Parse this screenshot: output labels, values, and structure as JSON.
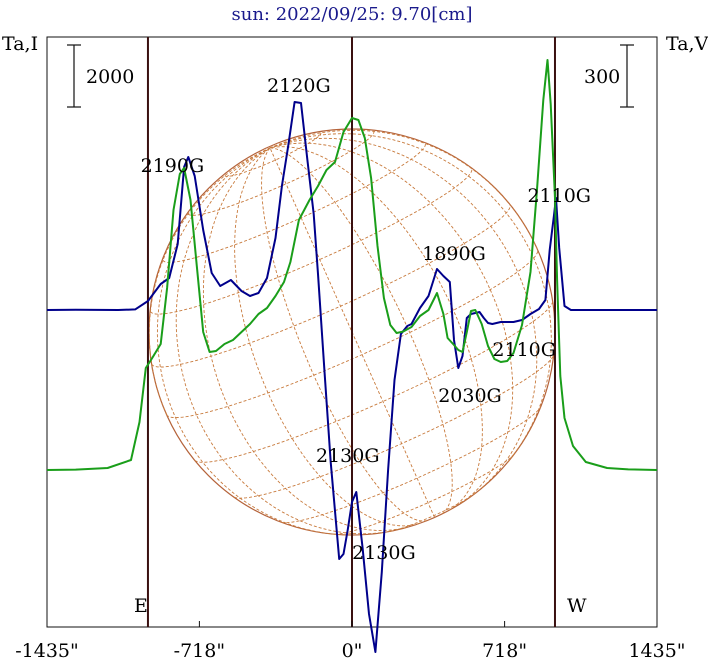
{
  "chart_data": {
    "type": "line",
    "title": "sun: 2022/09/25: 9.70[cm]",
    "ylabel_left": "Ta,I",
    "ylabel_right": "Ta,V",
    "scale_left": "2000",
    "scale_right": "300",
    "x_unit": "arcsec",
    "xlim": [
      -1435,
      1435
    ],
    "x_ticks": [
      -1435,
      -718,
      0,
      718,
      1435
    ],
    "x_tick_labels": [
      "-1435\"",
      "-718\"",
      "0\"",
      "718\"",
      "1435\""
    ],
    "grid": false,
    "markers": [
      {
        "label": "E",
        "x": -960
      },
      {
        "label": "",
        "x": 0
      },
      {
        "label": "W",
        "x": 955
      }
    ],
    "series": [
      {
        "name": "",
        "color": "#00008b",
        "baseline": 0,
        "x": [
          -1435,
          -1300,
          -1100,
          -1020,
          -960,
          -900,
          -860,
          -820,
          -790,
          -770,
          -740,
          -700,
          -660,
          -620,
          -570,
          -520,
          -480,
          -440,
          -400,
          -360,
          -330,
          -300,
          -270,
          -240,
          -210,
          -180,
          -160,
          -130,
          -100,
          -60,
          -40,
          -20,
          0,
          20,
          50,
          80,
          110,
          140,
          170,
          200,
          230,
          260,
          280,
          320,
          360,
          400,
          430,
          460,
          480,
          500,
          520,
          540,
          560,
          580,
          600,
          620,
          640,
          660,
          700,
          760,
          800,
          840,
          880,
          910,
          930,
          950,
          960,
          975,
          1000,
          1030,
          1060,
          1100,
          1200,
          1300,
          1435
        ],
        "y": [
          0,
          1,
          0,
          3,
          45,
          130,
          160,
          330,
          715,
          765,
          670,
          400,
          185,
          120,
          150,
          95,
          70,
          85,
          160,
          360,
          620,
          820,
          1040,
          1035,
          750,
          480,
          180,
          -300,
          -760,
          -1245,
          -1220,
          -1100,
          -960,
          -910,
          -1190,
          -1520,
          -1710,
          -1310,
          -800,
          -350,
          -120,
          -80,
          -70,
          10,
          70,
          205,
          170,
          140,
          -150,
          -290,
          -230,
          -40,
          -20,
          -15,
          -10,
          -40,
          -65,
          -70,
          -60,
          -60,
          -50,
          -20,
          5,
          50,
          300,
          470,
          560,
          310,
          20,
          0,
          0,
          0,
          0,
          0,
          0
        ]
      },
      {
        "name": "",
        "color": "#1a9e1a",
        "baseline": -800,
        "x": [
          -1435,
          -1300,
          -1150,
          -1040,
          -1000,
          -970,
          -940,
          -900,
          -870,
          -840,
          -810,
          -790,
          -760,
          -730,
          -700,
          -670,
          -640,
          -600,
          -560,
          -520,
          -480,
          -440,
          -400,
          -360,
          -320,
          -290,
          -250,
          -200,
          -160,
          -120,
          -80,
          -40,
          0,
          30,
          60,
          90,
          120,
          150,
          180,
          210,
          240,
          280,
          320,
          360,
          400,
          430,
          450,
          480,
          500,
          520,
          540,
          560,
          580,
          610,
          640,
          670,
          700,
          730,
          760,
          800,
          840,
          870,
          900,
          920,
          935,
          955,
          965,
          980,
          1000,
          1040,
          1100,
          1200,
          1300,
          1435
        ],
        "y": [
          -800,
          -798,
          -790,
          -750,
          -560,
          -290,
          -240,
          -170,
          110,
          500,
          680,
          710,
          550,
          220,
          -110,
          -210,
          -205,
          -170,
          -150,
          -110,
          -70,
          -20,
          10,
          70,
          140,
          240,
          450,
          550,
          620,
          700,
          740,
          890,
          960,
          950,
          860,
          660,
          320,
          60,
          -75,
          -115,
          -108,
          -85,
          -30,
          0,
          85,
          -20,
          -140,
          -175,
          -200,
          -210,
          -110,
          -5,
          0,
          -70,
          -180,
          -245,
          -260,
          -255,
          -215,
          -75,
          190,
          595,
          1050,
          1250,
          1030,
          560,
          150,
          -330,
          -540,
          -680,
          -760,
          -790,
          -797,
          -800
        ]
      }
    ],
    "annotations": [
      {
        "text": "2190G",
        "x": -845,
        "y_series": 0,
        "y": 690
      },
      {
        "text": "2120G",
        "x": -250,
        "y_series": 0,
        "y": 1090
      },
      {
        "text": "2110G",
        "x": 975,
        "y_series": 0,
        "y": 540
      },
      {
        "text": "1890G",
        "x": 480,
        "y_series": 0,
        "y": 250
      },
      {
        "text": "2110G",
        "x": 810,
        "y_series": 0,
        "y": -230
      },
      {
        "text": "2030G",
        "x": 555,
        "y_series": 0,
        "y": -460
      },
      {
        "text": "2130G",
        "x": -20,
        "y_series": 0,
        "y": -760
      },
      {
        "text": "2130G",
        "x": 150,
        "y_series": 0,
        "y": -1245
      }
    ]
  }
}
